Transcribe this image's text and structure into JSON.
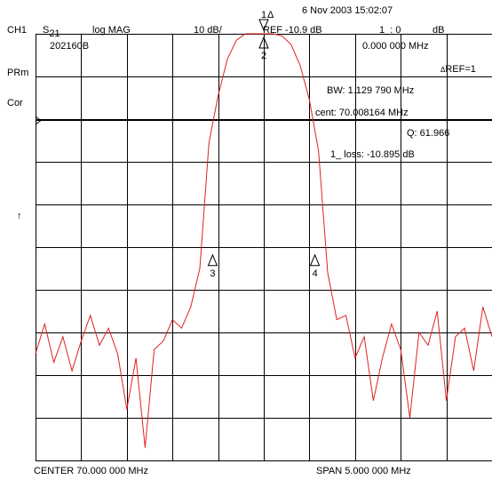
{
  "header": {
    "timestamp": "6 Nov 2003  15:02:07",
    "channel": "CH1",
    "param": "S",
    "param_sub": "21",
    "format": "log MAG",
    "scale": "10 dB/",
    "ref": "REF -10.9 dB",
    "marker_readout": "1_: 0",
    "marker_unit": "dB"
  },
  "side_labels": {
    "prm": "PRm",
    "cor": "Cor",
    "ref_arrow": "↑"
  },
  "annotations": {
    "file_id": "202160B",
    "marker_freq": "0.000 000 MHz",
    "ref_marker": "REF=1",
    "bw": "BW:   1.129 790 MHz",
    "center_readout": "cent:  70.008164 MHz",
    "q": "Q: 61.966",
    "loss": "1_ loss: -10.895 dB"
  },
  "footer": {
    "center": "CENTER  70.000 000 MHz",
    "span": "SPAN    5.000 000 MHz"
  },
  "colors": {
    "trace": "#e02020",
    "grid": "#000000",
    "background": "#ffffff"
  },
  "chart_data": {
    "type": "line",
    "title": "",
    "xlabel": "",
    "ylabel": "",
    "x_unit": "MHz",
    "y_unit": "dB",
    "xlim": [
      67.5,
      72.5
    ],
    "ylim": [
      -110.9,
      -10.9
    ],
    "grid": true,
    "series": [
      {
        "x": [
          67.5,
          67.6,
          67.7,
          67.8,
          67.9,
          68.0,
          68.1,
          68.2,
          68.3,
          68.4,
          68.5,
          68.6,
          68.7,
          68.8,
          68.9,
          69.0,
          69.1,
          69.2,
          69.3,
          69.4,
          69.5,
          69.6,
          69.7,
          69.8,
          69.9,
          70.0,
          70.1,
          70.2,
          70.3,
          70.4,
          70.5,
          70.6,
          70.7,
          70.8,
          70.9,
          71.0,
          71.1,
          71.2,
          71.3,
          71.4,
          71.5,
          71.6,
          71.7,
          71.8,
          71.9,
          72.0,
          72.1,
          72.2,
          72.3,
          72.4,
          72.5
        ],
        "y": [
          -85.9,
          -78.9,
          -87.9,
          -81.9,
          -89.9,
          -82.9,
          -76.9,
          -83.9,
          -79.9,
          -85.9,
          -98.9,
          -86.9,
          -107.9,
          -84.9,
          -82.9,
          -77.9,
          -79.9,
          -74.9,
          -65.9,
          -36.4,
          -25.4,
          -16.9,
          -12.4,
          -10.9,
          -10.9,
          -10.9,
          -10.9,
          -11.4,
          -13.4,
          -18.4,
          -26.4,
          -38.4,
          -66.9,
          -77.9,
          -76.9,
          -86.9,
          -81.9,
          -96.9,
          -86.9,
          -78.9,
          -84.9,
          -100.9,
          -80.9,
          -83.9,
          -75.9,
          -96.9,
          -81.9,
          -79.9,
          -89.9,
          -74.9,
          -81.9
        ]
      }
    ],
    "markers": [
      {
        "label": "1",
        "x": 70.0,
        "y": -10.9
      },
      {
        "label": "2",
        "x": 70.0,
        "y": -10.9
      },
      {
        "label": "3",
        "x": 69.44,
        "y": -61.9
      },
      {
        "label": "4",
        "x": 70.56,
        "y": -61.9
      }
    ]
  }
}
